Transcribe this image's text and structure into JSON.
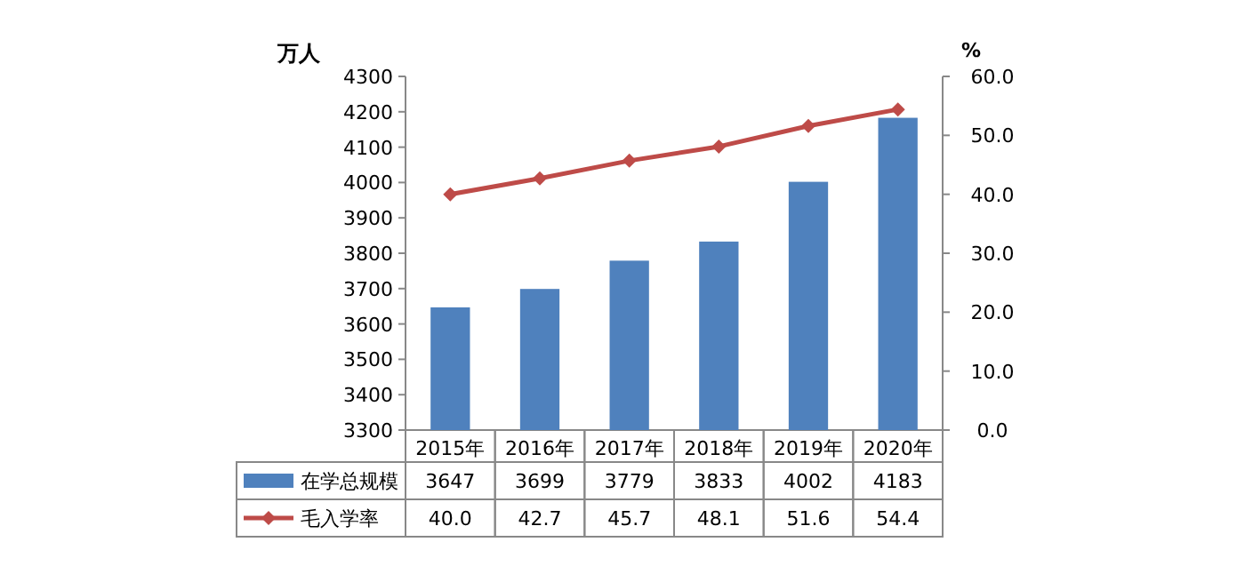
{
  "chart_data": {
    "type": "bar",
    "ylabel": "万人",
    "y2label": "%",
    "categories": [
      "2015年",
      "2016年",
      "2017年",
      "2018年",
      "2019年",
      "2020年"
    ],
    "series": [
      {
        "name": "在学总规模",
        "color": "#4f81bd",
        "values": [
          3647,
          3699,
          3779,
          3833,
          4002,
          4183
        ],
        "value_labels": [
          "3647",
          "3699",
          "3779",
          "3833",
          "4002",
          "4183"
        ]
      },
      {
        "name": "毛入学率",
        "type": "line",
        "axis": "y2",
        "color": "#be4b48",
        "marker": "diamond",
        "line_style": "solid",
        "values": [
          40.0,
          42.7,
          45.7,
          48.1,
          51.6,
          54.4
        ],
        "value_labels": [
          "40.0",
          "42.7",
          "45.7",
          "48.1",
          "51.6",
          "54.4"
        ]
      }
    ],
    "ylim": [
      3300,
      4300
    ],
    "yticks": [
      3300,
      3400,
      3500,
      3600,
      3700,
      3800,
      3900,
      4000,
      4100,
      4200,
      4300
    ],
    "y2lim": [
      0,
      60
    ],
    "y2ticks": [
      {
        "value": 0,
        "label": "0.0"
      },
      {
        "value": 10,
        "label": "10.0"
      },
      {
        "value": 20,
        "label": "20.0"
      },
      {
        "value": 30,
        "label": "30.0"
      },
      {
        "value": 40,
        "label": "40.0"
      },
      {
        "value": 50,
        "label": "50.0"
      },
      {
        "value": 60,
        "label": "60.0"
      }
    ],
    "legend": "bottom left",
    "grid": false
  }
}
